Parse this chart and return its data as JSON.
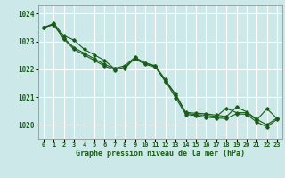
{
  "title": "Graphe pression niveau de la mer (hPa)",
  "bg_color": "#cce8e8",
  "grid_color": "#ffffff",
  "line_color": "#1a5c1a",
  "marker_color": "#1a5c1a",
  "xlim": [
    -0.5,
    23.5
  ],
  "ylim": [
    1019.5,
    1024.3
  ],
  "yticks": [
    1020,
    1021,
    1022,
    1023,
    1024
  ],
  "xticks": [
    0,
    1,
    2,
    3,
    4,
    5,
    6,
    7,
    8,
    9,
    10,
    11,
    12,
    13,
    14,
    15,
    16,
    17,
    18,
    19,
    20,
    21,
    22,
    23
  ],
  "series1": [
    1023.5,
    1023.65,
    1023.2,
    1023.05,
    1022.72,
    1022.52,
    1022.32,
    1022.02,
    1022.02,
    1022.42,
    1022.22,
    1022.12,
    1021.55,
    1021.12,
    1020.45,
    1020.42,
    1020.4,
    1020.35,
    1020.3,
    1020.64,
    1020.47,
    1020.2,
    1020.0,
    1020.25
  ],
  "series2": [
    1023.5,
    1023.62,
    1023.12,
    1022.78,
    1022.58,
    1022.38,
    1022.18,
    1022.03,
    1022.13,
    1022.43,
    1022.23,
    1022.13,
    1021.63,
    1021.08,
    1020.42,
    1020.37,
    1020.35,
    1020.3,
    1020.6,
    1020.44,
    1020.44,
    1020.18,
    1020.58,
    1020.23
  ],
  "series3": [
    1023.5,
    1023.6,
    1023.08,
    1022.72,
    1022.52,
    1022.32,
    1022.12,
    1021.98,
    1022.08,
    1022.38,
    1022.18,
    1022.08,
    1021.58,
    1020.98,
    1020.38,
    1020.33,
    1020.28,
    1020.25,
    1020.23,
    1020.4,
    1020.38,
    1020.1,
    1019.93,
    1020.2
  ]
}
